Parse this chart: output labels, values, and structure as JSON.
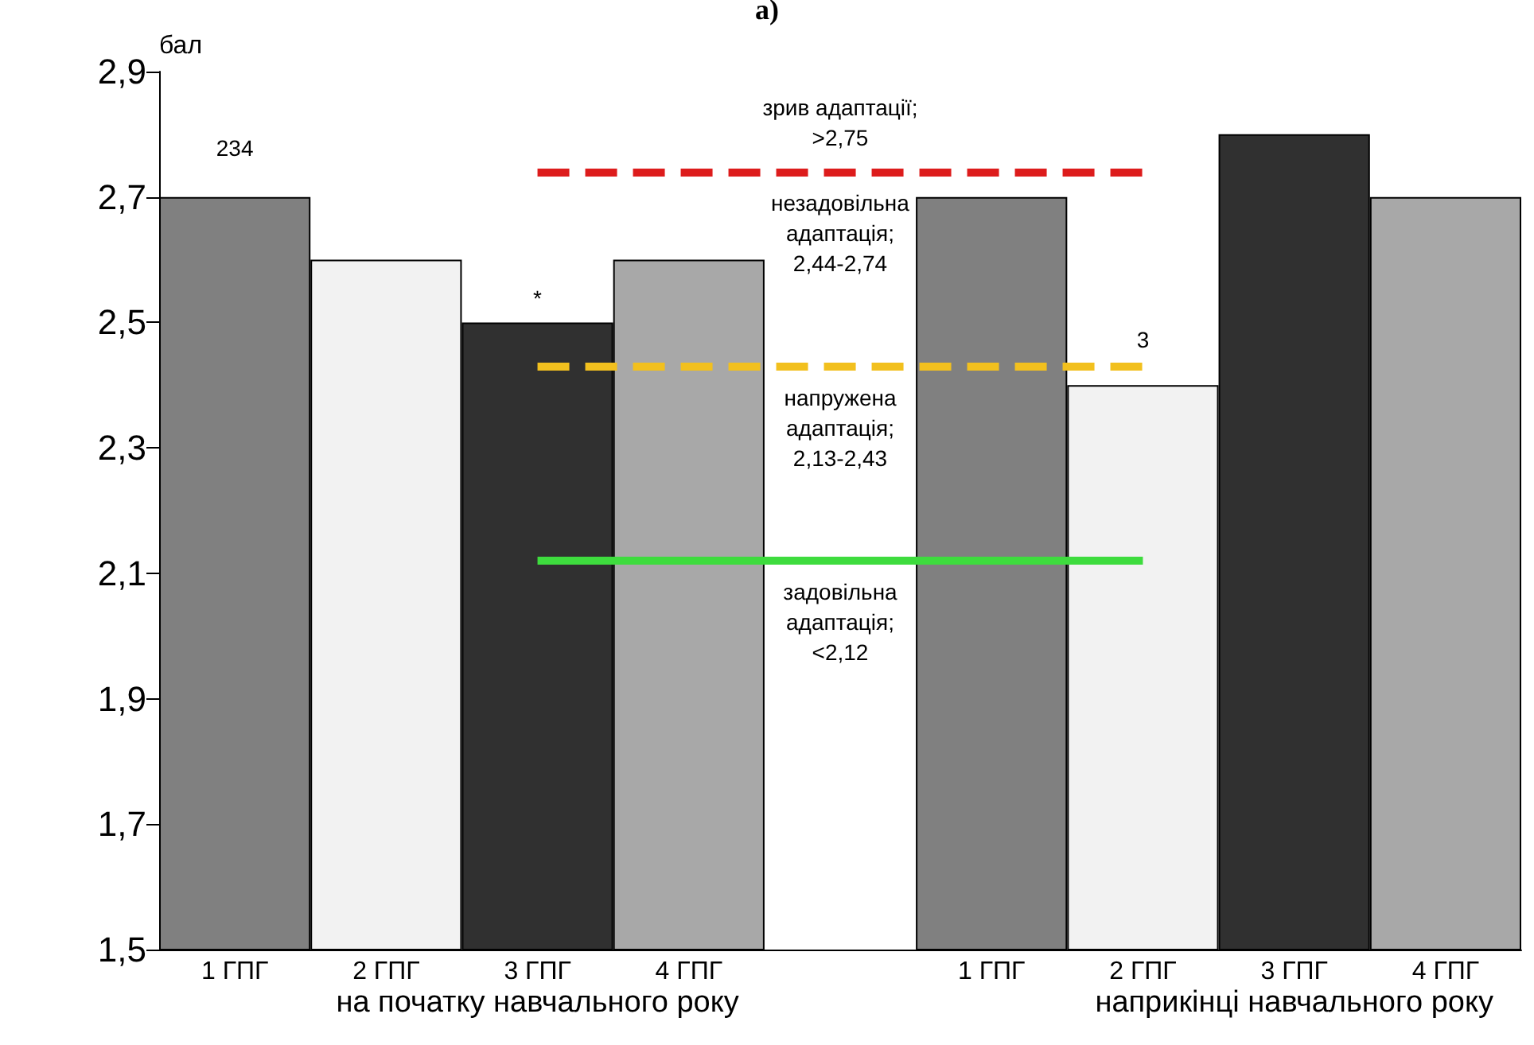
{
  "chart_data": {
    "type": "bar",
    "title": "а)",
    "ylabel": "бал",
    "categories": [
      "1 ГПГ",
      "2 ГПГ",
      "3 ГПГ",
      "4 ГПГ",
      null,
      "1 ГПГ",
      "2 ГПГ",
      "3 ГПГ",
      "4 ГПГ"
    ],
    "values": [
      2.7,
      2.6,
      2.5,
      2.6,
      null,
      2.7,
      2.4,
      2.8,
      2.7
    ],
    "colors": [
      "#808080",
      "#f2f2f2",
      "#303030",
      "#a8a8a8",
      "#ffffff",
      "#808080",
      "#f2f2f2",
      "#303030",
      "#a8a8a8"
    ],
    "ylim": [
      1.5,
      2.9
    ],
    "yticks": [
      {
        "value": 1.5,
        "label": "1,5"
      },
      {
        "value": 1.7,
        "label": "1,7"
      },
      {
        "value": 1.9,
        "label": "1,9"
      },
      {
        "value": 2.1,
        "label": "2,1"
      },
      {
        "value": 2.3,
        "label": "2,3"
      },
      {
        "value": 2.5,
        "label": "2,5"
      },
      {
        "value": 2.7,
        "label": "2,7"
      },
      {
        "value": 2.9,
        "label": "2,9"
      }
    ],
    "ref_lines": [
      {
        "axis": "y",
        "value": 2.74,
        "label": null,
        "color": "#dd1c1c",
        "line_style": "dashed"
      },
      {
        "axis": "y",
        "value": 2.43,
        "label": null,
        "color": "#f2c01e",
        "line_style": "dashed"
      },
      {
        "axis": "y",
        "value": 2.12,
        "label": null,
        "color": "#3edc3e",
        "line_style": "solid"
      }
    ],
    "annotations": [
      "на початку навчального року",
      "наприкінці навчального року",
      "зрив адаптації;\n>2,75",
      "незадовільна\nадаптація;\n2,44-2,74",
      "напружена\nадаптація;\n2,13-2,43",
      "задовільна\nадаптація;\n<2,12",
      {
        "text": "234",
        "x": "1 ГПГ",
        "y": 2.7
      },
      {
        "text": "*",
        "x": "3 ГПГ",
        "y": 2.5
      },
      "3"
    ],
    "grid": false
  }
}
